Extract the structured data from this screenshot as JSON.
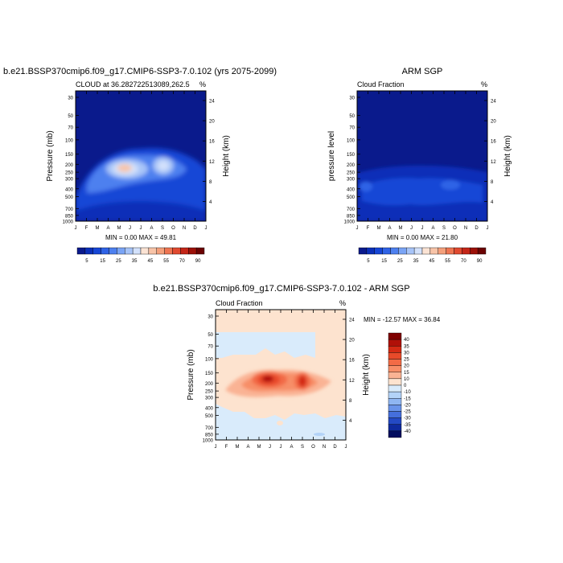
{
  "panels": [
    {
      "id": "model",
      "title": "b.e21.BSSP370cmip6.f09_g17.CMIP6-SSP3-7.0.102 (yrs 2075-2099)",
      "subtitle_left": "CLOUD at 36.282722513089,262.5",
      "subtitle_right": "%",
      "ylabel_left": "Pressure (mb)",
      "ylabel_right": "Height (km)",
      "minmax": "MIN =   0.00 MAX =  49.81"
    },
    {
      "id": "obs",
      "title": "ARM SGP",
      "subtitle_left": "Cloud Fraction",
      "subtitle_right": "%",
      "ylabel_left": "pressure level",
      "ylabel_right": "Height (km)",
      "minmax": "MIN =   0.00 MAX =  21.80"
    },
    {
      "id": "diff",
      "title": "b.e21.BSSP370cmip6.f09_g17.CMIP6-SSP3-7.0.102 - ARM SGP",
      "subtitle_left": "Cloud Fraction",
      "subtitle_right": "%",
      "ylabel_left": "Pressure (mb)",
      "ylabel_right": "Height (km)",
      "minmax": "MIN = -12.57 MAX =  36.84"
    }
  ],
  "axes": {
    "months": [
      "J",
      "F",
      "M",
      "A",
      "M",
      "J",
      "J",
      "A",
      "S",
      "O",
      "N",
      "D",
      "J"
    ],
    "pressure_ticks": [
      "30",
      "50",
      "70",
      "100",
      "150",
      "200",
      "250",
      "300",
      "400",
      "500",
      "700",
      "850",
      "1000"
    ],
    "height_ticks": [
      "24",
      "20",
      "16",
      "12",
      "8",
      "4"
    ]
  },
  "colorbar_abs": {
    "labels": [
      "5",
      "15",
      "25",
      "35",
      "45",
      "55",
      "70",
      "90"
    ],
    "colors": [
      "#0a1a8c",
      "#0b2fb8",
      "#1646d6",
      "#2f63e6",
      "#4d80ef",
      "#7aa4f5",
      "#a7c4f8",
      "#d3e1fb",
      "#fbe3d4",
      "#f8c4a8",
      "#f4a07c",
      "#ee7552",
      "#e04a30",
      "#c42618",
      "#9c1008",
      "#6b0202"
    ]
  },
  "colorbar_diff": {
    "labels": [
      "40",
      "35",
      "30",
      "25",
      "20",
      "15",
      "10",
      "0",
      "-10",
      "-15",
      "-20",
      "-25",
      "-30",
      "-35",
      "-40"
    ],
    "colors": [
      "#7f0000",
      "#b01008",
      "#d42a14",
      "#e84a2a",
      "#f26b46",
      "#f78e68",
      "#fab394",
      "#fde3cf",
      "#d9ebfb",
      "#b3d3f8",
      "#8fb6f2",
      "#6a94ea",
      "#456fdc",
      "#2449c4",
      "#0f2a9e",
      "#020d5e"
    ]
  },
  "chart_data": [
    {
      "type": "heatmap",
      "title": "b.e21.BSSP370cmip6.f09_g17.CMIP6-SSP3-7.0.102 (yrs 2075-2099)",
      "x": "month",
      "y": "pressure (mb)",
      "features": [
        {
          "month": 5.5,
          "pressure": 200,
          "value": 49.8
        },
        {
          "month": 8.7,
          "pressure": 200,
          "value": 35
        }
      ],
      "min": 0.0,
      "max": 49.81
    },
    {
      "type": "heatmap",
      "title": "ARM SGP",
      "x": "month",
      "y": "pressure level",
      "features": [
        {
          "month": 6,
          "pressure": 250,
          "value": 20
        }
      ],
      "min": 0.0,
      "max": 21.8
    },
    {
      "type": "heatmap",
      "title": "b.e21.BSSP370cmip6.f09_g17.CMIP6-SSP3-7.0.102 - ARM SGP",
      "x": "month",
      "y": "pressure (mb)",
      "features": [
        {
          "month": 5.7,
          "pressure": 200,
          "value": 36.8
        },
        {
          "month": 8.7,
          "pressure": 200,
          "value": 30
        }
      ],
      "min": -12.57,
      "max": 36.84
    }
  ]
}
